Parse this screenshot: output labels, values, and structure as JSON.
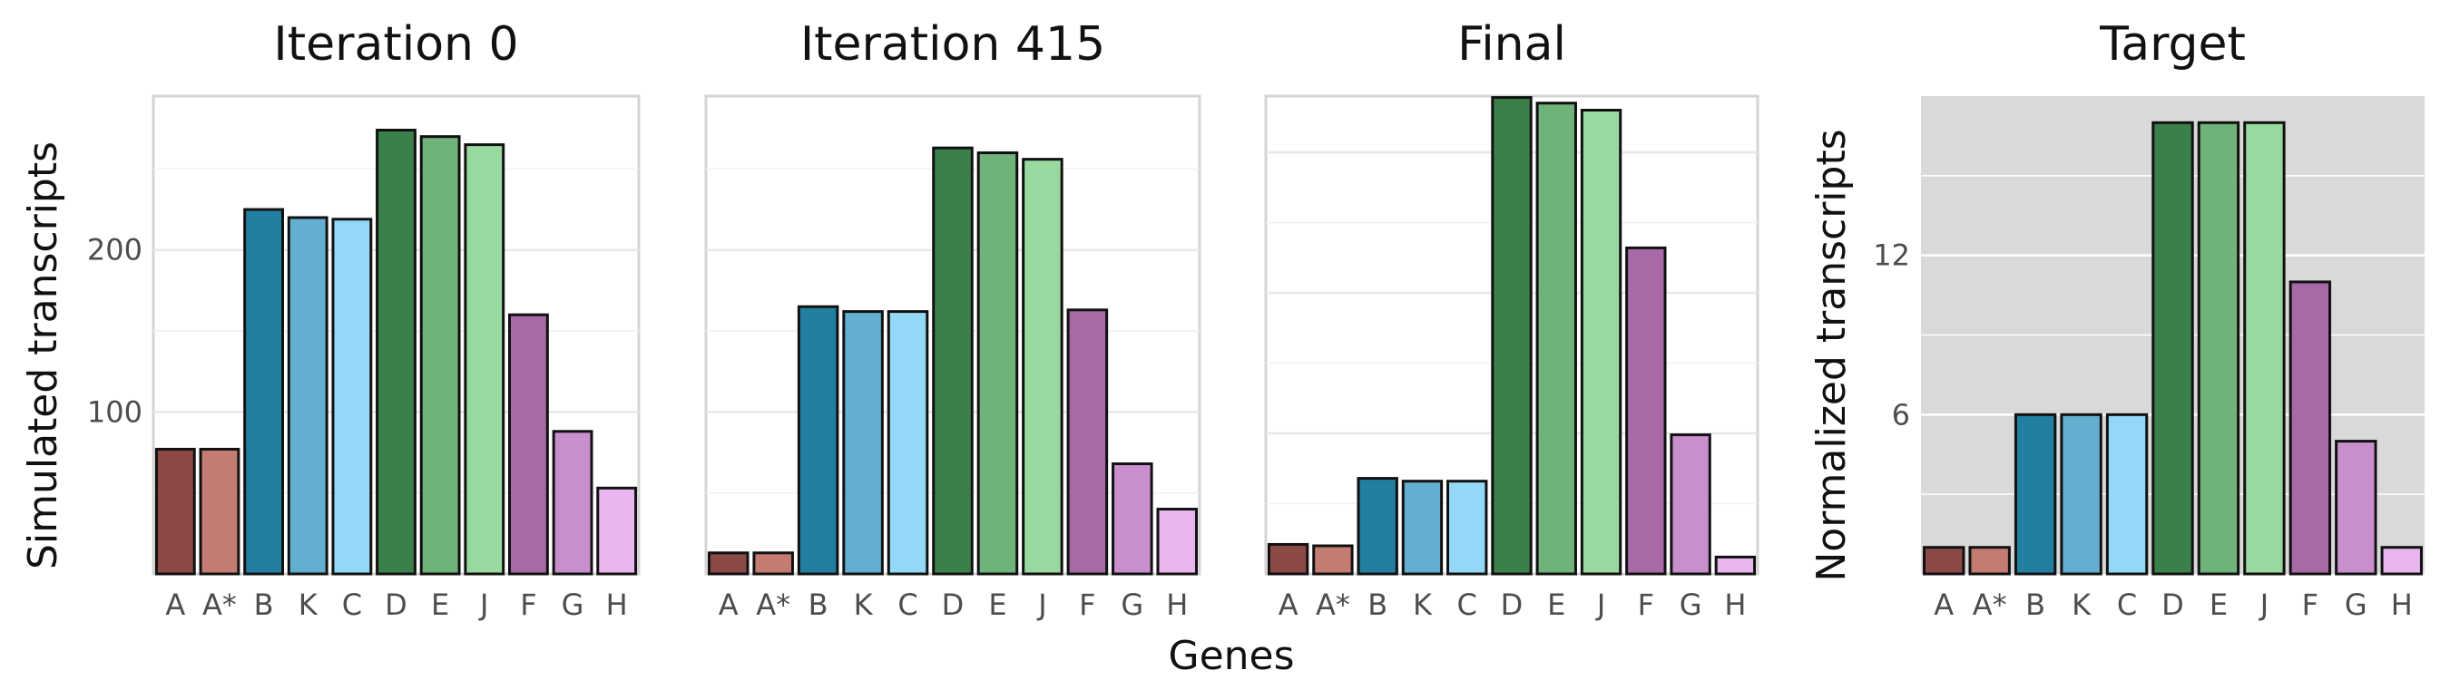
{
  "figure": {
    "xlabel": "Genes",
    "left_ylabel": "Simulated transcripts",
    "right_ylabel": "Normalized transcripts"
  },
  "chart_data": [
    {
      "type": "bar",
      "title": "Iteration 0",
      "categories": [
        "A",
        "A*",
        "B",
        "K",
        "C",
        "D",
        "E",
        "J",
        "F",
        "G",
        "H"
      ],
      "values": [
        77,
        77,
        225,
        220,
        219,
        274,
        270,
        265,
        160,
        88,
        53
      ],
      "colors": [
        "#8b4a46",
        "#c47b72",
        "#237f9f",
        "#64afd0",
        "#93d9f7",
        "#3b804a",
        "#6fb37a",
        "#98d9a0",
        "#a76aa6",
        "#c98fcd",
        "#e9b5ee"
      ],
      "ylim": [
        0,
        295
      ],
      "yticks": [
        100,
        200
      ],
      "background": "white",
      "grid": true
    },
    {
      "type": "bar",
      "title": "Iteration 415",
      "categories": [
        "A",
        "A*",
        "B",
        "K",
        "C",
        "D",
        "E",
        "J",
        "F",
        "G",
        "H"
      ],
      "values": [
        13,
        13,
        165,
        162,
        162,
        263,
        260,
        256,
        163,
        68,
        40
      ],
      "colors": [
        "#8b4a46",
        "#c47b72",
        "#237f9f",
        "#64afd0",
        "#93d9f7",
        "#3b804a",
        "#6fb37a",
        "#98d9a0",
        "#a76aa6",
        "#c98fcd",
        "#e9b5ee"
      ],
      "ylim": [
        0,
        295
      ],
      "yticks": [],
      "background": "white",
      "grid": true
    },
    {
      "type": "bar",
      "title": "Final",
      "categories": [
        "A",
        "A*",
        "B",
        "K",
        "C",
        "D",
        "E",
        "J",
        "F",
        "G",
        "H"
      ],
      "values": [
        21,
        20,
        68,
        66,
        66,
        339,
        335,
        330,
        232,
        99,
        12
      ],
      "colors": [
        "#8b4a46",
        "#c47b72",
        "#237f9f",
        "#64afd0",
        "#93d9f7",
        "#3b804a",
        "#6fb37a",
        "#98d9a0",
        "#a76aa6",
        "#c98fcd",
        "#e9b5ee"
      ],
      "ylim": [
        0,
        340
      ],
      "yticks": [],
      "background": "white",
      "grid": true
    },
    {
      "type": "bar",
      "title": "Target",
      "categories": [
        "A",
        "A*",
        "B",
        "K",
        "C",
        "D",
        "E",
        "J",
        "F",
        "G",
        "H"
      ],
      "values": [
        1,
        1,
        6,
        6,
        6,
        17,
        17,
        17,
        11,
        5,
        1
      ],
      "colors": [
        "#8b4a46",
        "#c47b72",
        "#237f9f",
        "#64afd0",
        "#93d9f7",
        "#3b804a",
        "#6fb37a",
        "#98d9a0",
        "#a76aa6",
        "#c98fcd",
        "#e9b5ee"
      ],
      "ylim": [
        0,
        18
      ],
      "yticks": [
        6,
        12
      ],
      "background": "gray",
      "grid": true
    }
  ]
}
